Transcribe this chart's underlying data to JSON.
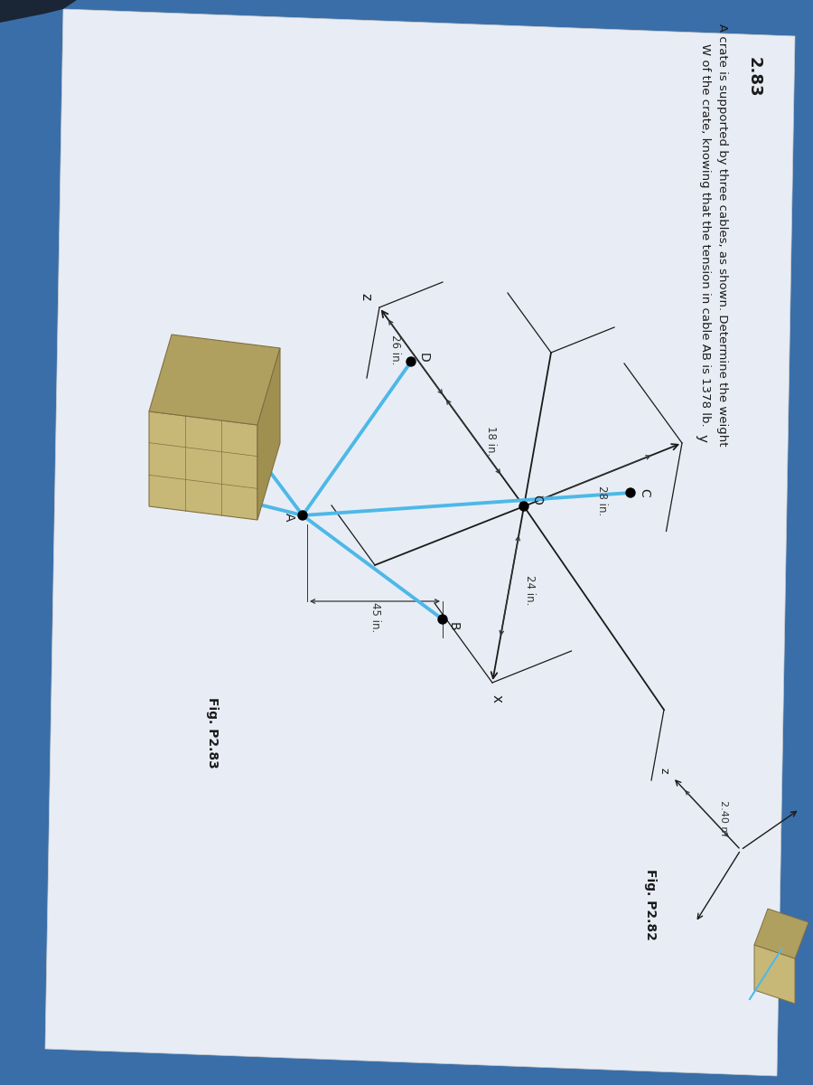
{
  "title_num": "2.83",
  "title_text": "A crate is supported by three cables, as shown. Determine the weight\nW of the crate, knowing that the tension in cable AB is 1378 lb.",
  "fig_label_83": "Fig. P2.83",
  "fig_label_82": "Fig. P2.82",
  "dim_18": "18 in.",
  "dim_26": "26 in.",
  "dim_28": "28 in.",
  "dim_24": "24 in.",
  "dim_45": "45 in.",
  "dim_240": "2.40 m",
  "point_labels": [
    "A",
    "B",
    "C",
    "D",
    "O"
  ],
  "axis_labels": [
    "x",
    "y",
    "z"
  ],
  "cable_color": "#4db8e8",
  "axis_color": "#1a1a1a",
  "bg_color": "#3a6ea8",
  "page_color": "#e8edf5",
  "text_color": "#1a1a1a",
  "dim_color": "#333333",
  "crate_front": "#c8b878",
  "crate_top": "#b0a060",
  "crate_right": "#a09050",
  "crate_line": "#807040"
}
